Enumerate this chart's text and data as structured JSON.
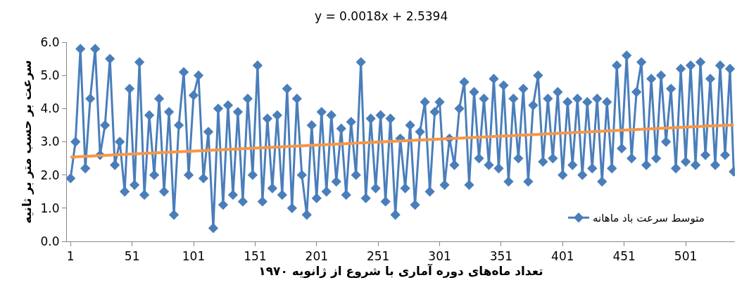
{
  "chart_data": {
    "type": "line",
    "xlabel": "تعداد ماه‌های دوره آماری با شروع از ژانویه ۱۹۷۰",
    "ylabel": "سرعت بر حسب متر بر ثانیه",
    "annotations": [
      "y = 0.0018x + 2.5394"
    ],
    "x": [
      1,
      5,
      9,
      13,
      17,
      21,
      25,
      29,
      33,
      37,
      41,
      45,
      49,
      53,
      57,
      61,
      65,
      69,
      73,
      77,
      81,
      85,
      89,
      93,
      97,
      101,
      105,
      109,
      113,
      117,
      121,
      125,
      129,
      133,
      137,
      141,
      145,
      149,
      153,
      157,
      161,
      165,
      169,
      173,
      177,
      181,
      185,
      189,
      193,
      197,
      201,
      205,
      209,
      213,
      217,
      221,
      225,
      229,
      233,
      237,
      241,
      245,
      249,
      253,
      257,
      261,
      265,
      269,
      273,
      277,
      281,
      285,
      289,
      293,
      297,
      301,
      305,
      309,
      313,
      317,
      321,
      325,
      329,
      333,
      337,
      341,
      345,
      349,
      353,
      357,
      361,
      365,
      369,
      373,
      377,
      381,
      385,
      389,
      393,
      397,
      401,
      405,
      409,
      413,
      417,
      421,
      425,
      429,
      433,
      437,
      441,
      445,
      449,
      453,
      457,
      461,
      465,
      469,
      473,
      477,
      481,
      485,
      489,
      493,
      497,
      501,
      505,
      509,
      513,
      517,
      521,
      525,
      529,
      533,
      537,
      540
    ],
    "series": [
      {
        "name": "متوسط سرعت باد ماهانه",
        "color": "#4a7ebb",
        "values": [
          1.9,
          3.0,
          5.8,
          2.2,
          4.3,
          5.8,
          2.6,
          3.5,
          5.5,
          2.3,
          3.0,
          1.5,
          4.6,
          1.7,
          5.4,
          1.4,
          3.8,
          2.0,
          4.3,
          1.5,
          3.9,
          0.8,
          3.5,
          5.1,
          2.0,
          4.4,
          5.0,
          1.9,
          3.3,
          0.4,
          4.0,
          1.1,
          4.1,
          1.4,
          3.9,
          1.2,
          4.3,
          2.0,
          5.3,
          1.2,
          3.7,
          1.6,
          3.8,
          1.4,
          4.6,
          1.0,
          4.3,
          2.0,
          0.8,
          3.5,
          1.3,
          3.9,
          1.5,
          3.8,
          1.8,
          3.4,
          1.4,
          3.6,
          2.0,
          5.4,
          1.3,
          3.7,
          1.6,
          3.8,
          1.2,
          3.7,
          0.8,
          3.1,
          1.6,
          3.5,
          1.1,
          3.3,
          4.2,
          1.5,
          3.9,
          4.2,
          1.7,
          3.1,
          2.3,
          4.0,
          4.8,
          1.7,
          4.5,
          2.5,
          4.3,
          2.3,
          4.9,
          2.2,
          4.7,
          1.8,
          4.3,
          2.5,
          4.6,
          1.8,
          4.1,
          5.0,
          2.4,
          4.3,
          2.5,
          4.5,
          2.0,
          4.2,
          2.3,
          4.3,
          2.0,
          4.2,
          2.2,
          4.3,
          1.8,
          4.2,
          2.2,
          5.3,
          2.8,
          5.6,
          2.5,
          4.5,
          5.4,
          2.3,
          4.9,
          2.5,
          5.0,
          3.0,
          4.6,
          2.2,
          5.2,
          2.4,
          5.3,
          2.3,
          5.4,
          2.6,
          4.9,
          2.3,
          5.3,
          2.6,
          5.2,
          2.1
        ]
      },
      {
        "type": "line",
        "marker": "none",
        "color": "#f79646",
        "x": [
          1,
          540
        ],
        "values": [
          2.541,
          3.511
        ]
      }
    ],
    "marker": "diamond",
    "legend": "bottom right",
    "xlim": [
      -2,
      541
    ],
    "xticks": [
      1,
      51,
      101,
      151,
      201,
      251,
      301,
      351,
      401,
      451,
      501
    ],
    "ylim": [
      0,
      6
    ],
    "yticks": [
      {
        "value": 0,
        "label": "0.0"
      },
      {
        "value": 1,
        "label": "1.0"
      },
      {
        "value": 2,
        "label": "2.0"
      },
      {
        "value": 3,
        "label": "3.0"
      },
      {
        "value": 4,
        "label": "4.0"
      },
      {
        "value": 5,
        "label": "5.0"
      },
      {
        "value": 6,
        "label": "6.0"
      }
    ]
  }
}
